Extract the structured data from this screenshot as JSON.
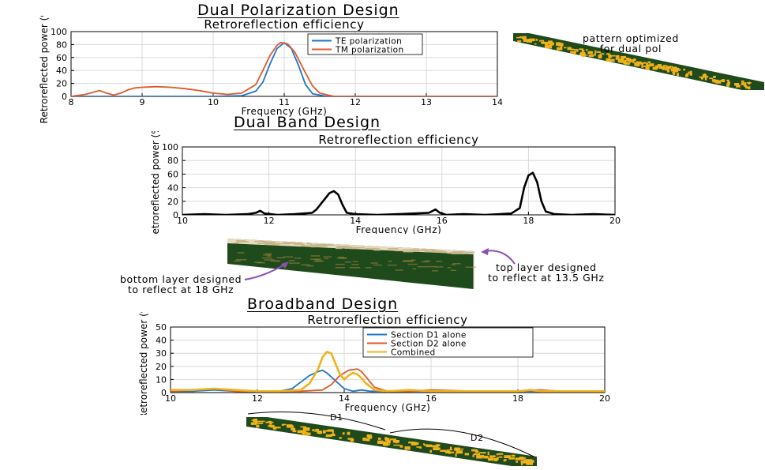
{
  "sections": {
    "dual_pol": {
      "title": "Dual Polarization Design"
    },
    "dual_band": {
      "title": "Dual Band Design"
    },
    "broadband": {
      "title": "Broadband Design"
    }
  },
  "annotations": {
    "pattern_pol": "pattern optimized\nfor dual pol",
    "bottom_layer": "bottom layer designed\nto reflect at 18 GHz",
    "top_layer": "top layer designed\nto reflect at 13.5 GHz",
    "d1": "D1",
    "d2": "D2"
  },
  "colors": {
    "series_blue": "#1f77c4",
    "series_orange": "#e0592a",
    "series_yellow": "#f0b21c",
    "series_black": "#000000",
    "surface_green": "#1f4a1c",
    "surface_gold": "#f0b21c",
    "arrow_purple": "#8b4fb3"
  },
  "chart_data": [
    {
      "id": "dual_pol_chart",
      "type": "line",
      "title": "Retroreflection efficiency",
      "xlabel": "Frequency (GHz)",
      "ylabel": "Retroreflected power (%)",
      "xlim": [
        8,
        14
      ],
      "ylim": [
        0,
        100
      ],
      "xticks": [
        8,
        9,
        10,
        11,
        12,
        13,
        14
      ],
      "yticks": [
        0,
        20,
        40,
        60,
        80,
        100
      ],
      "grid": true,
      "legend": "top-right",
      "series": [
        {
          "name": "TE polarization",
          "color": "#1f77c4",
          "x": [
            8,
            8.5,
            9,
            9.5,
            10,
            10.4,
            10.6,
            10.7,
            10.8,
            10.9,
            11.0,
            11.1,
            11.2,
            11.3,
            11.4,
            11.6,
            12,
            13,
            14
          ],
          "y": [
            0,
            0,
            0,
            0,
            0,
            1,
            8,
            22,
            50,
            74,
            83,
            74,
            48,
            18,
            4,
            0,
            0,
            0,
            0
          ]
        },
        {
          "name": "TM polarization",
          "color": "#e0592a",
          "x": [
            8,
            8.2,
            8.3,
            8.4,
            8.5,
            8.6,
            8.7,
            8.8,
            8.9,
            9.0,
            9.2,
            9.4,
            9.6,
            9.8,
            10.0,
            10.2,
            10.4,
            10.6,
            10.7,
            10.8,
            10.9,
            10.95,
            11.05,
            11.15,
            11.3,
            11.4,
            11.5,
            11.7,
            12,
            13,
            14
          ],
          "y": [
            0,
            3,
            6,
            9,
            5,
            2,
            5,
            10,
            13,
            14,
            15,
            14,
            12,
            9,
            5,
            3,
            5,
            18,
            40,
            63,
            79,
            83,
            81,
            68,
            36,
            16,
            5,
            0,
            0,
            0,
            0
          ]
        }
      ]
    },
    {
      "id": "dual_band_chart",
      "type": "line",
      "title": "Retroreflection efficiency",
      "xlabel": "Frequency (GHz)",
      "ylabel": "Retroreflected power (%)",
      "xlim": [
        10,
        20
      ],
      "ylim": [
        0,
        100
      ],
      "xticks": [
        10,
        12,
        14,
        16,
        18,
        20
      ],
      "yticks": [
        0,
        20,
        40,
        60,
        80,
        100
      ],
      "grid": true,
      "series": [
        {
          "color": "#000000",
          "x": [
            10,
            10.5,
            11,
            11.5,
            11.7,
            11.8,
            11.9,
            12.2,
            12.6,
            13.0,
            13.1,
            13.3,
            13.4,
            13.5,
            13.6,
            13.7,
            13.8,
            14.0,
            14.5,
            15,
            15.7,
            15.85,
            15.95,
            16.1,
            16.5,
            17,
            17.6,
            17.8,
            17.9,
            18.0,
            18.1,
            18.2,
            18.3,
            18.4,
            18.6,
            19,
            19.5,
            20
          ],
          "y": [
            0,
            1,
            0,
            1,
            3,
            6,
            2,
            0,
            1,
            3,
            8,
            24,
            32,
            35,
            30,
            15,
            3,
            1,
            0,
            1,
            3,
            8,
            3,
            0,
            1,
            0,
            2,
            10,
            40,
            58,
            62,
            48,
            20,
            5,
            1,
            0,
            1,
            0
          ]
        }
      ]
    },
    {
      "id": "broadband_chart",
      "type": "line",
      "title": "Retroreflection efficiency",
      "xlabel": "Frequency (GHz)",
      "ylabel": "Retroreflected power (%)",
      "xlim": [
        10,
        20
      ],
      "ylim": [
        0,
        50
      ],
      "xticks": [
        10,
        12,
        14,
        16,
        18,
        20
      ],
      "yticks": [
        0,
        10,
        20,
        30,
        40,
        50
      ],
      "grid": true,
      "legend": "top-right",
      "series": [
        {
          "name": "Section D1 alone",
          "color": "#1f77c4",
          "x": [
            10,
            10.5,
            11,
            11.5,
            12,
            12.5,
            12.8,
            13.0,
            13.2,
            13.4,
            13.5,
            13.6,
            13.8,
            14.0,
            14.2,
            14.4,
            14.6,
            15,
            16,
            17,
            18,
            19,
            20
          ],
          "y": [
            1,
            1,
            2,
            1,
            1,
            1,
            3,
            8,
            13,
            16,
            17,
            15,
            9,
            3,
            1,
            2,
            1,
            1,
            1,
            1,
            1,
            1,
            1
          ]
        },
        {
          "name": "Section D2 alone",
          "color": "#e0592a",
          "x": [
            10,
            10.5,
            11,
            11.5,
            12,
            12.5,
            13,
            13.5,
            13.7,
            13.9,
            14.1,
            14.3,
            14.4,
            14.5,
            14.7,
            15,
            15.5,
            16,
            17,
            18,
            18.5,
            19,
            19.5,
            20
          ],
          "y": [
            1,
            2,
            3,
            1,
            1,
            1,
            1,
            2,
            6,
            13,
            17,
            18,
            16,
            12,
            4,
            1,
            1,
            2,
            1,
            1,
            2,
            1,
            1,
            1
          ]
        },
        {
          "name": "Combined",
          "color": "#f0b21c",
          "x": [
            10,
            10.5,
            11,
            11.5,
            12,
            12.5,
            13,
            13.2,
            13.4,
            13.5,
            13.6,
            13.7,
            13.8,
            13.9,
            14.0,
            14.1,
            14.2,
            14.3,
            14.4,
            14.5,
            14.7,
            15,
            15.5,
            16,
            17,
            18,
            18.3,
            18.5,
            19,
            20
          ],
          "y": [
            2,
            2,
            3,
            2,
            1,
            1,
            2,
            7,
            18,
            27,
            31,
            30,
            22,
            14,
            10,
            13,
            15,
            14,
            11,
            7,
            2,
            1,
            2,
            1,
            1,
            1,
            2,
            1,
            1,
            1
          ]
        }
      ]
    }
  ]
}
